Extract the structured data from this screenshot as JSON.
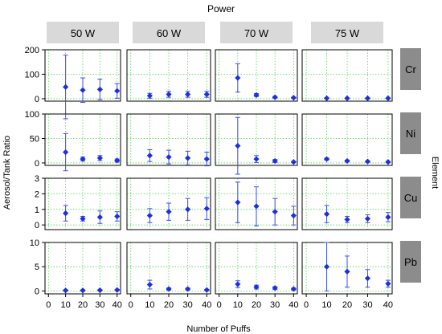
{
  "figure": {
    "top_title": "Power",
    "x_axis_title": "Number of Puffs",
    "y_axis_title": "Aerosol/Tank Ratio",
    "right_title": "Element"
  },
  "colors": {
    "marker": "#1f2fdc",
    "errorbar": "#3a4ee6",
    "grid": "#57d057",
    "column_header_bg": "#d9d9d9",
    "row_header_bg": "#8c8c8c"
  },
  "chart_data": {
    "type": "scatter",
    "subtype": "faceted scatter with error bars",
    "columns": [
      "50 W",
      "60 W",
      "70 W",
      "75 W"
    ],
    "rows": [
      {
        "label": "Cr",
        "ylim": [
          -10,
          200
        ],
        "yticks": [
          0,
          100,
          200
        ]
      },
      {
        "label": "Ni",
        "ylim": [
          -5,
          100
        ],
        "yticks": [
          0,
          50,
          100
        ]
      },
      {
        "label": "Cu",
        "ylim": [
          -0.3,
          3
        ],
        "yticks": [
          0,
          1,
          2,
          3
        ]
      },
      {
        "label": "Pb",
        "ylim": [
          -0.6,
          10
        ],
        "yticks": [
          0,
          5,
          10
        ]
      }
    ],
    "x": [
      10,
      20,
      30,
      40
    ],
    "xlim": [
      -2,
      42
    ],
    "xticks": [
      0,
      10,
      20,
      30,
      40
    ],
    "grid": true,
    "panels": [
      [
        [
          {
            "y": 48,
            "err": 130
          },
          {
            "y": 35,
            "err": 50
          },
          {
            "y": 38,
            "err": 42
          },
          {
            "y": 32,
            "err": 30
          }
        ],
        [
          {
            "y": 12,
            "err": 10
          },
          {
            "y": 18,
            "err": 12
          },
          {
            "y": 18,
            "err": 12
          },
          {
            "y": 18,
            "err": 12
          }
        ],
        [
          {
            "y": 85,
            "err": 58
          },
          {
            "y": 15,
            "err": 6
          },
          {
            "y": 6,
            "err": 3
          },
          {
            "y": 4,
            "err": 2
          }
        ],
        [
          {
            "y": 2,
            "err": 1
          },
          {
            "y": 2,
            "err": 1
          },
          {
            "y": 2,
            "err": 1
          },
          {
            "y": 2,
            "err": 1
          }
        ]
      ],
      [
        [
          {
            "y": 22,
            "err": 38
          },
          {
            "y": 8,
            "err": 4
          },
          {
            "y": 10,
            "err": 5
          },
          {
            "y": 5,
            "err": 3
          }
        ],
        [
          {
            "y": 15,
            "err": 12
          },
          {
            "y": 12,
            "err": 14
          },
          {
            "y": 10,
            "err": 14
          },
          {
            "y": 8,
            "err": 14
          }
        ],
        [
          {
            "y": 35,
            "err": 58
          },
          {
            "y": 8,
            "err": 7
          },
          {
            "y": 4,
            "err": 3
          },
          {
            "y": 2,
            "err": 1
          }
        ],
        [
          {
            "y": 8,
            "err": 2
          },
          {
            "y": 4,
            "err": 1.5
          },
          {
            "y": 3,
            "err": 1
          },
          {
            "y": 2,
            "err": 1
          }
        ]
      ],
      [
        [
          {
            "y": 0.75,
            "err": 0.5
          },
          {
            "y": 0.4,
            "err": 0.15
          },
          {
            "y": 0.5,
            "err": 0.4
          },
          {
            "y": 0.55,
            "err": 0.3
          }
        ],
        [
          {
            "y": 0.6,
            "err": 0.45
          },
          {
            "y": 0.85,
            "err": 0.55
          },
          {
            "y": 1.0,
            "err": 0.7
          },
          {
            "y": 1.05,
            "err": 0.7
          }
        ],
        [
          {
            "y": 1.45,
            "err": 1.3
          },
          {
            "y": 1.2,
            "err": 1.25
          },
          {
            "y": 0.85,
            "err": 0.85
          },
          {
            "y": 0.6,
            "err": 0.6
          }
        ],
        [
          {
            "y": 0.7,
            "err": 0.55
          },
          {
            "y": 0.35,
            "err": 0.2
          },
          {
            "y": 0.4,
            "err": 0.25
          },
          {
            "y": 0.5,
            "err": 0.3
          }
        ]
      ],
      [
        [
          {
            "y": 0.1,
            "err": 0.1
          },
          {
            "y": 0.1,
            "err": 0.1
          },
          {
            "y": 0.15,
            "err": 0.1
          },
          {
            "y": 0.2,
            "err": 0.1
          }
        ],
        [
          {
            "y": 1.3,
            "err": 0.9
          },
          {
            "y": 0.4,
            "err": 0.2
          },
          {
            "y": 0.4,
            "err": 0.2
          },
          {
            "y": 0.2,
            "err": 0.1
          }
        ],
        [
          {
            "y": 1.4,
            "err": 0.7
          },
          {
            "y": 0.8,
            "err": 0.4
          },
          {
            "y": 0.6,
            "err": 0.3
          },
          {
            "y": 0.4,
            "err": 0.2
          }
        ],
        [
          {
            "y": 5.0,
            "err": 5.0
          },
          {
            "y": 4.0,
            "err": 3.2
          },
          {
            "y": 2.6,
            "err": 1.8
          },
          {
            "y": 1.5,
            "err": 0.7
          }
        ]
      ]
    ]
  }
}
